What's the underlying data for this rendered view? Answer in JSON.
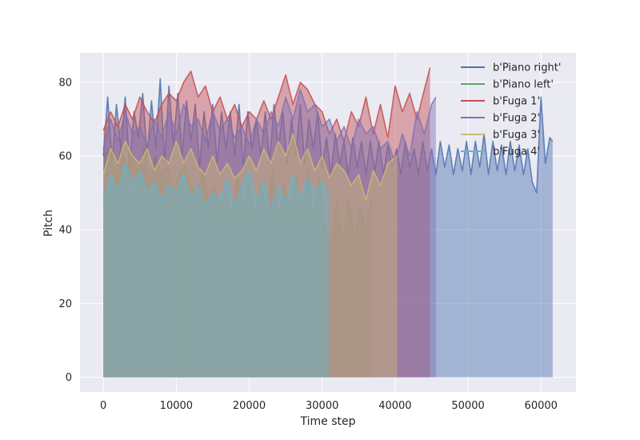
{
  "chart_data": {
    "type": "area",
    "xlabel": "Time step",
    "ylabel": "Pitch",
    "xlim": [
      -3200,
      64800
    ],
    "ylim": [
      -4,
      88
    ],
    "xticks": [
      0,
      10000,
      20000,
      30000,
      40000,
      50000,
      60000
    ],
    "yticks": [
      0,
      20,
      40,
      60,
      80
    ],
    "grid": true,
    "legend_position": "top-right",
    "series": [
      {
        "name": "b'Piano right'",
        "color": "#4c72b0",
        "x": [
          0,
          600,
          1200,
          1800,
          2400,
          3000,
          3600,
          4200,
          4800,
          5400,
          6000,
          6600,
          7200,
          7800,
          8400,
          9000,
          9600,
          10200,
          10800,
          11400,
          12000,
          12600,
          13200,
          13800,
          14400,
          15000,
          15600,
          16200,
          16800,
          17400,
          18000,
          18600,
          19200,
          19800,
          20400,
          21000,
          21600,
          22200,
          22800,
          23400,
          24000,
          24600,
          25200,
          25800,
          26400,
          27000,
          27600,
          28200,
          28800,
          29400,
          30000,
          30600,
          31200,
          31800,
          32400,
          33000,
          33600,
          34200,
          34800,
          35400,
          36000,
          36600,
          37200,
          37800,
          38400,
          39000,
          39600,
          40200,
          40800,
          41400,
          42000,
          42600,
          43200,
          43800,
          44400,
          45000,
          45600,
          46200,
          46800,
          47400,
          48000,
          48600,
          49200,
          49800,
          50400,
          51000,
          51600,
          52200,
          52800,
          53400,
          54000,
          54600,
          55200,
          55800,
          56400,
          57000,
          57600,
          58200,
          58800,
          59400,
          60000,
          60600,
          61200,
          61600
        ],
        "values": [
          60,
          76,
          58,
          74,
          62,
          76,
          57,
          72,
          65,
          77,
          60,
          75,
          62,
          81,
          58,
          79,
          63,
          77,
          60,
          75,
          64,
          74,
          57,
          72,
          62,
          74,
          58,
          72,
          62,
          72,
          60,
          74,
          57,
          72,
          62,
          70,
          60,
          72,
          58,
          74,
          62,
          72,
          58,
          70,
          60,
          74,
          58,
          70,
          62,
          72,
          57,
          65,
          55,
          66,
          58,
          64,
          55,
          65,
          57,
          64,
          55,
          64,
          56,
          64,
          55,
          63,
          57,
          62,
          55,
          64,
          57,
          62,
          55,
          64,
          56,
          62,
          55,
          64,
          57,
          63,
          55,
          62,
          56,
          64,
          55,
          64,
          57,
          66,
          55,
          64,
          56,
          63,
          55,
          64,
          56,
          63,
          55,
          62,
          53,
          50,
          76,
          58,
          65,
          64
        ]
      },
      {
        "name": "b'Piano left'",
        "color": "#55a868",
        "x": [
          0,
          800,
          1600,
          2400,
          3200,
          4000,
          4800,
          5600,
          6400,
          7200,
          8000,
          8800,
          9600,
          10400,
          11200,
          12000,
          12800,
          13600,
          14400,
          15200,
          16000,
          16800,
          17600,
          18400,
          19200,
          20000,
          20800,
          21600,
          22400,
          23200,
          24000,
          24800,
          25600,
          26400,
          27200,
          28000,
          28800,
          29600,
          30400,
          31200,
          32000,
          32800,
          33600,
          34400,
          35200,
          36000,
          36800
        ],
        "values": [
          60,
          62,
          55,
          62,
          57,
          60,
          55,
          62,
          52,
          60,
          55,
          57,
          50,
          55,
          58,
          52,
          50,
          55,
          48,
          52,
          46,
          50,
          43,
          55,
          45,
          53,
          42,
          52,
          44,
          56,
          42,
          52,
          44,
          55,
          43,
          56,
          42,
          54,
          40,
          36,
          48,
          36,
          48,
          38,
          46,
          40,
          48
        ]
      },
      {
        "name": "b'Fuga 1'",
        "color": "#c44e52",
        "x": [
          0,
          1000,
          2000,
          3000,
          4000,
          5000,
          6000,
          7000,
          8000,
          9000,
          10000,
          11000,
          12000,
          13000,
          14000,
          15000,
          16000,
          17000,
          18000,
          19000,
          20000,
          21000,
          22000,
          23000,
          24000,
          25000,
          26000,
          27000,
          28000,
          29000,
          30000,
          31000,
          32000,
          33000,
          34000,
          35000,
          36000,
          37000,
          38000,
          39000,
          40000,
          41000,
          42000,
          43000,
          44000,
          44800
        ],
        "values": [
          67,
          72,
          68,
          74,
          70,
          76,
          72,
          69,
          74,
          77,
          75,
          80,
          83,
          76,
          79,
          72,
          76,
          70,
          74,
          68,
          72,
          70,
          75,
          70,
          76,
          82,
          74,
          80,
          78,
          74,
          72,
          66,
          70,
          64,
          72,
          68,
          76,
          66,
          74,
          65,
          79,
          72,
          77,
          70,
          78,
          84
        ]
      },
      {
        "name": "b'Fuga 2'",
        "color": "#8172b2",
        "x": [
          0,
          1000,
          2000,
          3000,
          4000,
          5000,
          6000,
          7000,
          8000,
          9000,
          10000,
          11000,
          12000,
          13000,
          14000,
          15000,
          16000,
          17000,
          18000,
          19000,
          20000,
          21000,
          22000,
          23000,
          24000,
          25000,
          26000,
          27000,
          28000,
          29000,
          30000,
          31000,
          32000,
          33000,
          34000,
          35000,
          36000,
          37000,
          38000,
          39000,
          40000,
          41000,
          42000,
          43000,
          44000,
          45000,
          45600
        ],
        "values": [
          62,
          70,
          64,
          72,
          66,
          68,
          63,
          70,
          65,
          72,
          66,
          74,
          68,
          70,
          64,
          72,
          67,
          70,
          65,
          68,
          63,
          70,
          66,
          72,
          68,
          76,
          70,
          78,
          72,
          74,
          68,
          70,
          64,
          68,
          62,
          70,
          66,
          68,
          62,
          64,
          58,
          66,
          60,
          72,
          66,
          74,
          76
        ]
      },
      {
        "name": "b'Fuga 3'",
        "color": "#ccb974",
        "x": [
          0,
          1000,
          2000,
          3000,
          4000,
          5000,
          6000,
          7000,
          8000,
          9000,
          10000,
          11000,
          12000,
          13000,
          14000,
          15000,
          16000,
          17000,
          18000,
          19000,
          20000,
          21000,
          22000,
          23000,
          24000,
          25000,
          26000,
          27000,
          28000,
          29000,
          30000,
          31000,
          32000,
          33000,
          34000,
          35000,
          36000,
          37000,
          38000,
          39000,
          40300
        ],
        "values": [
          55,
          62,
          58,
          64,
          60,
          58,
          62,
          56,
          60,
          58,
          64,
          58,
          62,
          57,
          55,
          60,
          55,
          58,
          54,
          56,
          60,
          56,
          62,
          58,
          64,
          60,
          66,
          58,
          62,
          56,
          60,
          54,
          58,
          56,
          52,
          55,
          48,
          56,
          52,
          58,
          60
        ]
      },
      {
        "name": "b'Fuga 4'",
        "color": "#64b5cd",
        "x": [
          0,
          1000,
          2000,
          3000,
          4000,
          5000,
          6000,
          7000,
          8000,
          9000,
          10000,
          11000,
          12000,
          13000,
          14000,
          15000,
          16000,
          17000,
          18000,
          19000,
          20000,
          21000,
          22000,
          23000,
          24000,
          25000,
          26000,
          27000,
          28000,
          29000,
          30000,
          30900
        ],
        "values": [
          48,
          55,
          50,
          58,
          52,
          56,
          50,
          53,
          48,
          52,
          50,
          55,
          48,
          52,
          46,
          50,
          48,
          54,
          46,
          52,
          56,
          48,
          53,
          45,
          52,
          47,
          55,
          48,
          54,
          50,
          53,
          50
        ]
      }
    ]
  }
}
